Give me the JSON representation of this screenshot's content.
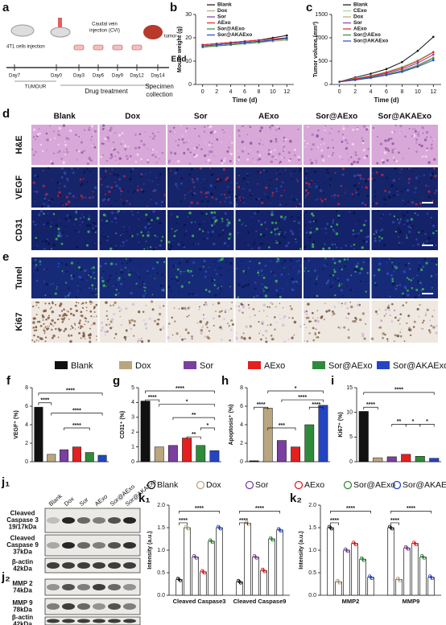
{
  "schematic": {
    "label": "a",
    "injection": "4T1 cells injection",
    "cvi_line1": "Caudal vein",
    "cvi_line2": "injection (CVI)",
    "tumor": "tumor",
    "days": [
      "Day7",
      "Day0",
      "Day3",
      "Day6",
      "Day9",
      "Day12",
      "Day14"
    ],
    "tumour": "TUMOUR",
    "treatment": "Drug treatment",
    "collection": [
      "Specimen",
      "collection"
    ],
    "end": "End"
  },
  "micrographs": {
    "labels": [
      "d",
      "e"
    ],
    "columns": [
      "Blank",
      "Dox",
      "Sor",
      "AExo",
      "Sor@AExo",
      "Sor@AKAExo"
    ],
    "rows": [
      "H&E",
      "VEGF",
      "CD31",
      "Tunel",
      "Ki67"
    ]
  },
  "groups": [
    {
      "name": "Blank",
      "color": "#111111"
    },
    {
      "name": "Dox",
      "color": "#b9a57e"
    },
    {
      "name": "Sor",
      "color": "#7a3fa0"
    },
    {
      "name": "AExo",
      "color": "#e3201f"
    },
    {
      "name": "Sor@AExo",
      "color": "#2e8b3a"
    },
    {
      "name": "Sor@AKAExo",
      "color": "#2445c2"
    }
  ],
  "blots": [
    {
      "label": "j₁",
      "lanes": [
        "Blank",
        "Dox",
        "Sor",
        "AExo",
        "Sor@AExo",
        "Sor@AKAExo"
      ],
      "rows": [
        [
          "Cleaved",
          "Caspase 3",
          "19/17kDa"
        ],
        [
          "Cleaved",
          "Caspase 9",
          "37kDa"
        ],
        [
          "β-actin",
          "42kDa"
        ]
      ]
    },
    {
      "label": "j₂",
      "rows": [
        [
          "MMP 2",
          "74kDa"
        ],
        [
          "MMP 9",
          "78kDa"
        ],
        [
          "β-actin",
          "42kDa"
        ]
      ]
    }
  ],
  "chart_data": [
    {
      "type": "line",
      "label": "b",
      "ylabel": "Mouse weight (g)",
      "xlabel": "Time (d)",
      "x": [
        0,
        2,
        4,
        6,
        8,
        10,
        12
      ],
      "xlim": [
        -1,
        13
      ],
      "xticks": [
        0,
        2,
        4,
        6,
        8,
        10,
        12
      ],
      "ylim": [
        0,
        30
      ],
      "yticks": [
        0,
        10,
        20,
        30
      ],
      "series": [
        {
          "name": "Blank",
          "color": "#111111",
          "values": [
            17,
            17.5,
            18,
            18.5,
            19,
            20,
            21
          ]
        },
        {
          "name": "Dox",
          "color": "#b9a57e",
          "values": [
            16,
            16.5,
            17,
            17.5,
            18,
            18.5,
            19
          ]
        },
        {
          "name": "Sor",
          "color": "#7a3fa0",
          "values": [
            16.5,
            17,
            17.5,
            18,
            18.5,
            19,
            20
          ]
        },
        {
          "name": "AExo",
          "color": "#e3201f",
          "values": [
            17,
            17.5,
            18,
            18.5,
            19,
            19.5,
            20
          ]
        },
        {
          "name": "Sor@AExo",
          "color": "#2e8b3a",
          "values": [
            16,
            16.5,
            17,
            17.5,
            18,
            19,
            19.5
          ]
        },
        {
          "name": "Sor@AKAExo",
          "color": "#2445c2",
          "values": [
            16.5,
            17,
            17.5,
            18,
            18.5,
            19,
            20
          ]
        }
      ]
    },
    {
      "type": "line",
      "label": "c",
      "ylabel": "Tumor volume (mm³)",
      "xlabel": "Time (d)",
      "x": [
        0,
        2,
        4,
        6,
        8,
        10,
        12
      ],
      "xlim": [
        -1,
        13
      ],
      "xticks": [
        0,
        2,
        4,
        6,
        8,
        10,
        12
      ],
      "ylim": [
        0,
        1500
      ],
      "yticks": [
        0,
        500,
        1000,
        1500
      ],
      "series": [
        {
          "name": "Blank",
          "color": "#111111",
          "values": [
            60,
            150,
            230,
            330,
            480,
            720,
            1020
          ]
        },
        {
          "name": "CExo",
          "color": "#9fd89a",
          "values": [
            60,
            130,
            190,
            270,
            380,
            520,
            700
          ]
        },
        {
          "name": "Dox",
          "color": "#b9a57e",
          "values": [
            55,
            100,
            160,
            220,
            300,
            420,
            580
          ]
        },
        {
          "name": "Sor",
          "color": "#7a3fa0",
          "values": [
            55,
            110,
            170,
            240,
            330,
            460,
            640
          ]
        },
        {
          "name": "AExo",
          "color": "#e3201f",
          "values": [
            60,
            120,
            180,
            260,
            360,
            500,
            690
          ]
        },
        {
          "name": "Sor@AExo",
          "color": "#2e8b3a",
          "values": [
            55,
            100,
            150,
            210,
            290,
            400,
            560
          ]
        },
        {
          "name": "Sor@AKAExo",
          "color": "#2445c2",
          "values": [
            55,
            95,
            140,
            200,
            270,
            380,
            520
          ]
        }
      ]
    },
    {
      "type": "bar",
      "label": "f",
      "ylabel": "VEGF⁺ (%)",
      "ylim": [
        0,
        8
      ],
      "yticks": [
        0,
        2,
        4,
        6,
        8
      ],
      "values": [
        5.9,
        0.8,
        1.3,
        1.6,
        1.0,
        0.7
      ],
      "annotations": [
        "****",
        "****",
        "****",
        "****"
      ]
    },
    {
      "type": "bar",
      "label": "g",
      "ylabel": "CD31⁺ (%)",
      "ylim": [
        0,
        5
      ],
      "yticks": [
        0,
        1,
        2,
        3,
        4,
        5
      ],
      "values": [
        4.1,
        1.0,
        1.1,
        1.6,
        1.1,
        0.75
      ],
      "annotations": [
        "****",
        "****",
        "*",
        "**",
        "*",
        "**"
      ]
    },
    {
      "type": "bar",
      "label": "h",
      "ylabel": "Apoptosis⁺ (%)",
      "ylim": [
        0,
        8
      ],
      "yticks": [
        0,
        2,
        4,
        6,
        8
      ],
      "values": [
        0.1,
        5.8,
        2.3,
        1.6,
        4.0,
        6.1
      ],
      "annotations": [
        "*",
        "****",
        "****",
        "***",
        "****"
      ]
    },
    {
      "type": "bar",
      "label": "i",
      "ylabel": "Ki67⁺ (%)",
      "ylim": [
        0,
        15
      ],
      "yticks": [
        0,
        5,
        10,
        15
      ],
      "values": [
        10.2,
        0.8,
        1.0,
        1.5,
        1.1,
        0.7
      ],
      "annotations": [
        "****",
        "****",
        "**",
        "*",
        "*"
      ]
    },
    {
      "type": "grouped",
      "label": "k₁",
      "ylabel": "Intensity (a.u.)",
      "categories": [
        "Cleaved Caspase3",
        "Cleaved Caspase9"
      ],
      "ylim": [
        0,
        2
      ],
      "yticks": [
        {
          "value": 0,
          "label": "0.0"
        },
        0.5,
        {
          "value": 1,
          "label": "1.0"
        },
        1.5,
        {
          "value": 2,
          "label": "2.0"
        }
      ],
      "series": [
        {
          "name": "Blank",
          "color": "#111111",
          "values": [
            0.35,
            0.3
          ]
        },
        {
          "name": "Dox",
          "color": "#b9a57e",
          "values": [
            1.5,
            1.6
          ]
        },
        {
          "name": "Sor",
          "color": "#7a3fa0",
          "values": [
            0.85,
            0.85
          ]
        },
        {
          "name": "AExo",
          "color": "#e3201f",
          "values": [
            0.52,
            0.55
          ]
        },
        {
          "name": "Sor@AExo",
          "color": "#2e8b3a",
          "values": [
            1.2,
            1.25
          ]
        },
        {
          "name": "Sor@AKAExo",
          "color": "#2445c2",
          "values": [
            1.5,
            1.45
          ]
        }
      ],
      "annotations": [
        "****",
        "****",
        "****",
        "****"
      ]
    },
    {
      "type": "grouped",
      "label": "k₂",
      "ylabel": "Intensity (a.u.)",
      "categories": [
        "MMP2",
        "MMP9"
      ],
      "ylim": [
        0,
        2
      ],
      "yticks": [
        {
          "value": 0,
          "label": "0.0"
        },
        0.5,
        {
          "value": 1,
          "label": "1.0"
        },
        1.5,
        {
          "value": 2,
          "label": "2.0"
        }
      ],
      "series": [
        {
          "name": "Blank",
          "color": "#111111",
          "values": [
            1.5,
            1.5
          ]
        },
        {
          "name": "Dox",
          "color": "#b9a57e",
          "values": [
            0.3,
            0.35
          ]
        },
        {
          "name": "Sor",
          "color": "#7a3fa0",
          "values": [
            1.0,
            1.05
          ]
        },
        {
          "name": "AExo",
          "color": "#e3201f",
          "values": [
            1.15,
            1.15
          ]
        },
        {
          "name": "Sor@AExo",
          "color": "#2e8b3a",
          "values": [
            0.8,
            0.85
          ]
        },
        {
          "name": "Sor@AKAExo",
          "color": "#2445c2",
          "values": [
            0.4,
            0.4
          ]
        }
      ],
      "annotations": [
        "****",
        "****",
        "****",
        "****"
      ]
    }
  ]
}
